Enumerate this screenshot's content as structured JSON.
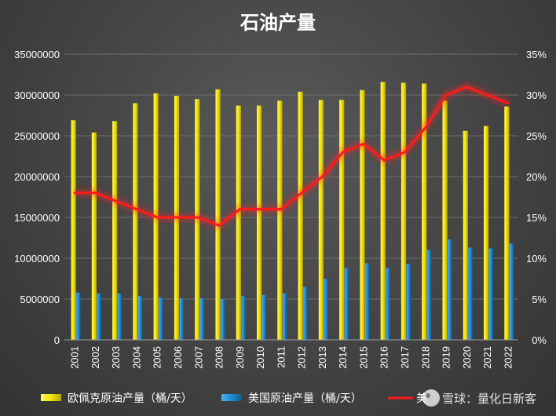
{
  "chart_data": {
    "type": "bar",
    "title": "石油产量",
    "categories": [
      "2001",
      "2002",
      "2003",
      "2004",
      "2005",
      "2006",
      "2007",
      "2008",
      "2009",
      "2010",
      "2011",
      "2012",
      "2013",
      "2014",
      "2015",
      "2016",
      "2017",
      "2018",
      "2019",
      "2020",
      "2021",
      "2022"
    ],
    "series": [
      {
        "name": "欧佩克原油产量（桶/天）",
        "type": "bar",
        "axis": "left",
        "color": "#f2e100",
        "values": [
          26900000,
          25400000,
          26800000,
          29000000,
          30200000,
          29900000,
          29500000,
          30700000,
          28700000,
          28700000,
          29300000,
          30400000,
          29400000,
          29400000,
          30600000,
          31600000,
          31500000,
          31400000,
          29300000,
          25600000,
          26200000,
          28600000
        ]
      },
      {
        "name": "美国原油产量（桶/天）",
        "type": "bar",
        "axis": "right_bar",
        "color": "#1f8ad6",
        "values": [
          5800000,
          5700000,
          5700000,
          5400000,
          5200000,
          5100000,
          5100000,
          5000000,
          5400000,
          5500000,
          5700000,
          6500000,
          7500000,
          8800000,
          9400000,
          8800000,
          9300000,
          11000000,
          12300000,
          11300000,
          11200000,
          11800000
        ]
      },
      {
        "name": "美国原油产量占比",
        "type": "line",
        "axis": "right",
        "color": "#ff1a1a",
        "values": [
          0.18,
          0.18,
          0.17,
          0.16,
          0.15,
          0.15,
          0.15,
          0.14,
          0.16,
          0.16,
          0.16,
          0.18,
          0.2,
          0.23,
          0.24,
          0.22,
          0.23,
          0.26,
          0.3,
          0.31,
          0.3,
          0.29
        ]
      }
    ],
    "y_left": {
      "ylim": [
        0,
        35000000
      ],
      "ticks": [
        "0",
        "5000000",
        "10000000",
        "15000000",
        "20000000",
        "25000000",
        "30000000",
        "35000000"
      ]
    },
    "y_right": {
      "ylim": [
        0,
        0.35
      ],
      "ticks": [
        "0%",
        "5%",
        "10%",
        "15%",
        "20%",
        "25%",
        "30%",
        "35%"
      ]
    },
    "grid": true,
    "legend_position": "bottom",
    "legend_visible_line_label": "美",
    "colors": {
      "opec_bar": "#f2e100",
      "us_bar": "#1f8ad6",
      "share_line": "#ff1a1a",
      "grid": "#6e6e6e",
      "text": "#ffffff"
    }
  },
  "watermark": {
    "text": "雪球：量化日新客"
  }
}
